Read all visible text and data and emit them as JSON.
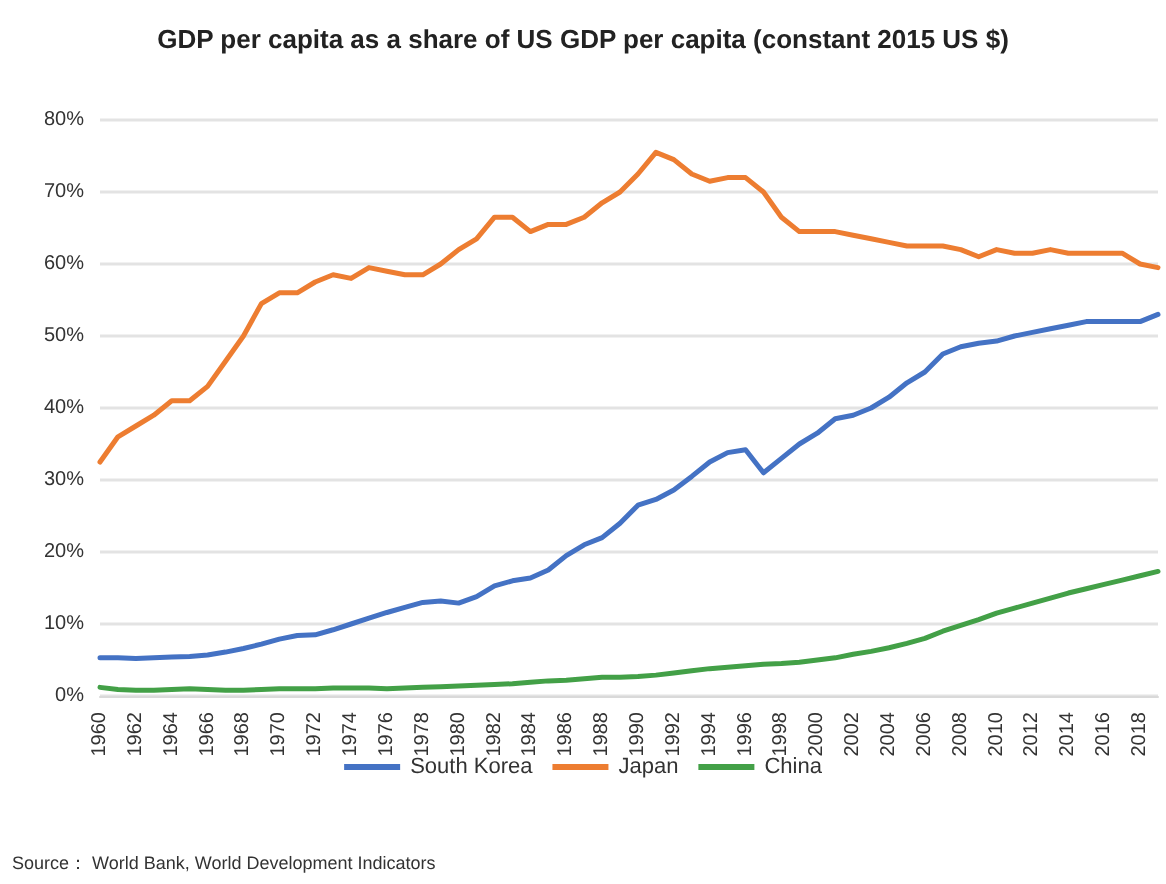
{
  "chart_data": {
    "type": "line",
    "title": "GDP per capita as a share of US GDP per capita (constant 2015 US $)",
    "categories": [
      "1960",
      null,
      "1962",
      null,
      "1964",
      null,
      "1966",
      null,
      "1968",
      null,
      "1970",
      null,
      "1972",
      null,
      "1974",
      null,
      "1976",
      null,
      "1978",
      null,
      "1980",
      null,
      "1982",
      null,
      "1984",
      null,
      "1986",
      null,
      "1988",
      null,
      "1990",
      null,
      "1992",
      null,
      "1994",
      null,
      "1996",
      null,
      "1998",
      null,
      "2000",
      null,
      "2002",
      null,
      "2004",
      null,
      "2006",
      null,
      "2008",
      null,
      "2010",
      null,
      "2012",
      null,
      "2014",
      null,
      "2016",
      null,
      "2018",
      null
    ],
    "series": [
      {
        "name": "South Korea",
        "color": "#4472c4",
        "values": [
          5.3,
          5.3,
          5.2,
          5.3,
          5.4,
          5.5,
          5.7,
          6.1,
          6.6,
          7.2,
          7.9,
          8.4,
          8.5,
          9.2,
          10,
          10.8,
          11.6,
          12.3,
          13,
          13.2,
          12.9,
          13.8,
          15.3,
          16,
          16.4,
          17.5,
          19.5,
          21,
          22,
          24,
          26.5,
          27.3,
          28.6,
          30.5,
          32.5,
          33.8,
          34.2,
          31,
          33,
          35,
          36.5,
          38.5,
          39,
          40,
          41.5,
          43.5,
          45,
          47.5,
          48.5,
          49,
          49.3,
          50,
          50.5,
          51,
          51.5,
          52,
          52,
          52,
          52,
          53
        ]
      },
      {
        "name": "Japan",
        "color": "#ed7d31",
        "values": [
          32.5,
          36,
          37.5,
          39,
          41,
          41,
          43,
          46.5,
          50,
          54.5,
          56,
          56,
          57.5,
          58.5,
          58,
          59.5,
          59,
          58.5,
          58.5,
          60,
          62,
          63.5,
          66.5,
          66.5,
          64.5,
          65.5,
          65.5,
          66.5,
          68.5,
          70,
          72.5,
          75.5,
          74.5,
          72.5,
          71.5,
          72,
          72,
          70,
          66.5,
          64.5,
          64.5,
          64.5,
          64,
          63.5,
          63,
          62.5,
          62.5,
          62.5,
          62,
          61,
          62,
          61.5,
          61.5,
          62,
          61.5,
          61.5,
          61.5,
          61.5,
          60,
          59.5
        ]
      },
      {
        "name": "China",
        "color": "#43a047",
        "values": [
          1.2,
          0.9,
          0.8,
          0.8,
          0.9,
          1,
          0.9,
          0.8,
          0.8,
          0.9,
          1,
          1,
          1,
          1.1,
          1.1,
          1.1,
          1,
          1.1,
          1.2,
          1.3,
          1.4,
          1.5,
          1.6,
          1.7,
          1.9,
          2.1,
          2.2,
          2.4,
          2.6,
          2.6,
          2.7,
          2.9,
          3.2,
          3.5,
          3.8,
          4,
          4.2,
          4.4,
          4.5,
          4.7,
          5,
          5.3,
          5.8,
          6.2,
          6.7,
          7.3,
          8,
          9,
          9.8,
          10.6,
          11.5,
          12.2,
          12.9,
          13.6,
          14.3,
          14.9,
          15.5,
          16.1,
          16.7,
          17.3
        ]
      }
    ],
    "ylim": [
      0,
      80
    ],
    "yticks": [
      {
        "value": 0,
        "label": "0%"
      },
      {
        "value": 10,
        "label": "10%"
      },
      {
        "value": 20,
        "label": "20%"
      },
      {
        "value": 30,
        "label": "30%"
      },
      {
        "value": 40,
        "label": "40%"
      },
      {
        "value": 50,
        "label": "50%"
      },
      {
        "value": 60,
        "label": "60%"
      },
      {
        "value": 70,
        "label": "70%"
      },
      {
        "value": 80,
        "label": "80%"
      }
    ],
    "grid": "y",
    "legend": "bottom",
    "marker": "none",
    "line_style": "solid",
    "annotations": [
      "Source： World Bank, World Development Indicators"
    ]
  }
}
